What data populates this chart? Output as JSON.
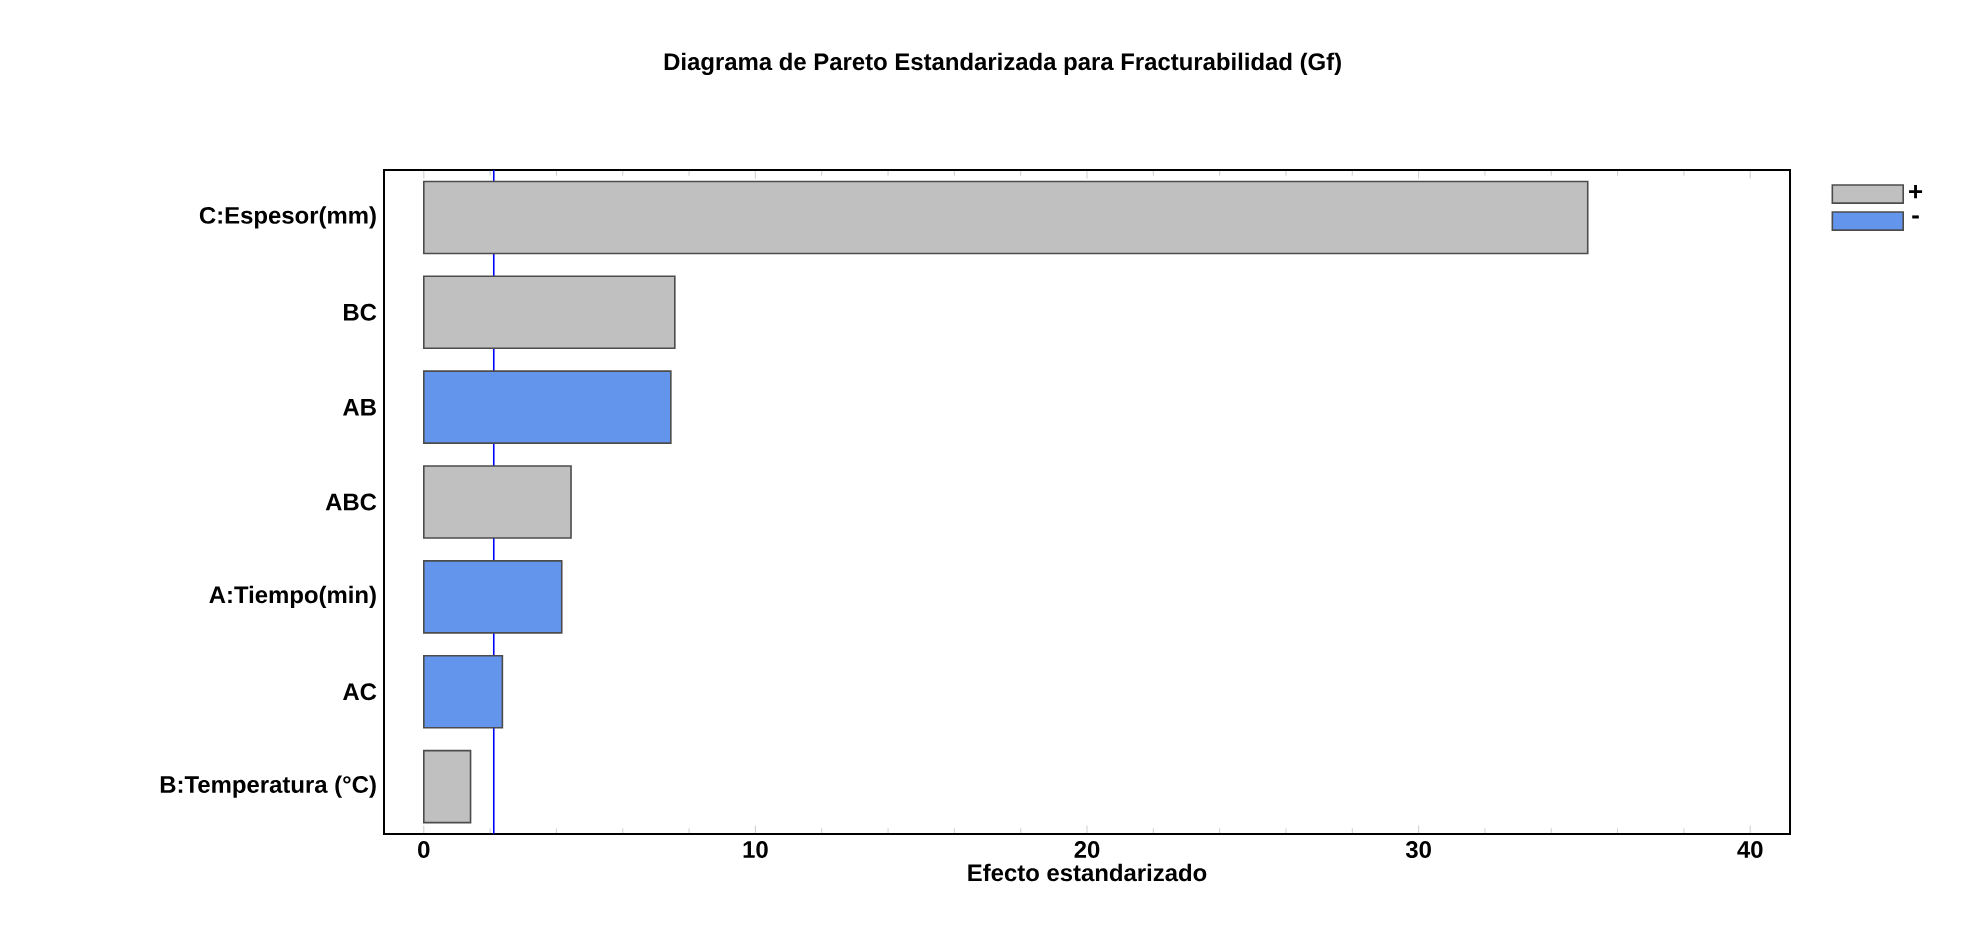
{
  "chart_data": {
    "type": "bar",
    "orientation": "horizontal",
    "stacked": true,
    "title": "Diagrama de Pareto Estandarizada para Fracturabilidad (Gf)",
    "xlabel": "Efecto estandarizado",
    "categories": [
      "C:Espesor(mm)",
      "BC",
      "AB",
      "ABC",
      "A:Tiempo(min)",
      "AC",
      "B:Temperatura (°C)"
    ],
    "series": [
      {
        "name": "+",
        "color": "#c0c0c0",
        "values": [
          35.1,
          7.57,
          null,
          4.44,
          null,
          null,
          1.41
        ]
      },
      {
        "name": "-",
        "color": "#6495ed",
        "values": [
          null,
          null,
          7.45,
          null,
          4.16,
          2.37,
          null
        ]
      }
    ],
    "xlim": [
      -1.2,
      41.2
    ],
    "xticks": [
      0,
      10,
      20,
      30,
      40
    ],
    "ref_lines": [
      {
        "axis": "x",
        "value": 2.11,
        "color": "#0000ff"
      }
    ],
    "legend": "top right",
    "grid": false
  }
}
